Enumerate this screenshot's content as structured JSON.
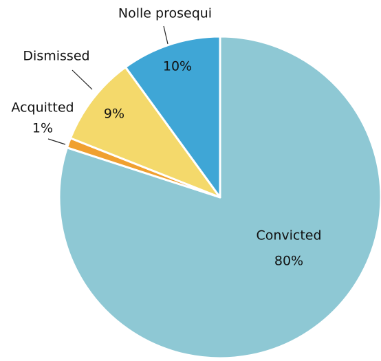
{
  "chart_data": {
    "type": "pie",
    "categories": [
      "Convicted",
      "Acquitted",
      "Dismissed",
      "Nolle prosequi"
    ],
    "values": [
      80,
      1,
      9,
      10
    ],
    "value_labels": [
      "80%",
      "1%",
      "9%",
      "10%"
    ],
    "colors": [
      "#8ec8d4",
      "#f0a030",
      "#f4d96b",
      "#3fa6d6"
    ]
  }
}
